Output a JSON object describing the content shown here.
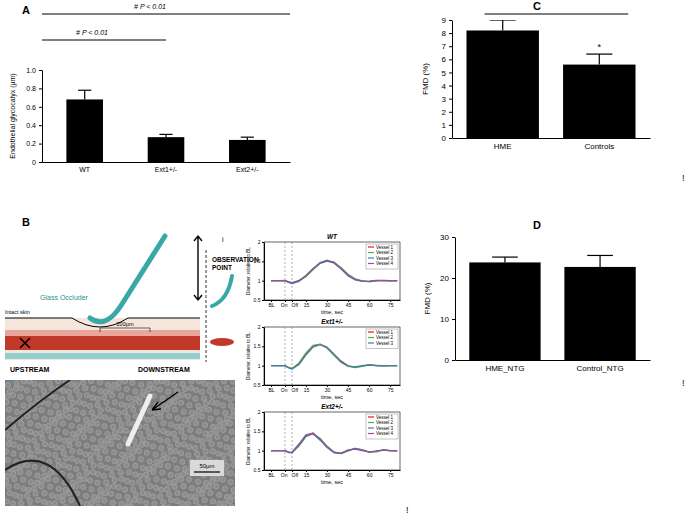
{
  "panel_labels": [
    "A",
    "B",
    "C",
    "D"
  ],
  "stray_marks": [
    "!",
    "!",
    "!"
  ],
  "diagram": {
    "glass_occluder": "Glass Occluder",
    "observation_point": "OBSERVATION POINT",
    "i": "i",
    "intact_skin": "Intact skin",
    "length": "200µm",
    "upstream": "UPSTREAM",
    "downstream": "DOWNSTREAM",
    "scale_bar": "50µm"
  },
  "chart_data": [
    {
      "type": "bar",
      "categories": [
        "WT",
        "Ext1+/-",
        "Ext2+/-"
      ],
      "values": [
        0.68,
        0.27,
        0.24
      ],
      "errors": [
        0.1,
        0.03,
        0.03
      ],
      "color": "#000000",
      "ylabel": "Endothelial glycocalyx (µm)",
      "ylim": [
        0,
        1
      ],
      "yticks": [
        0,
        0.2,
        0.4,
        0.6,
        0.8,
        {
          "value": 1,
          "label": "1.0"
        }
      ],
      "annotations": [
        "# P < 0.01",
        "# P < 0.01"
      ]
    },
    {
      "type": "bar",
      "categories": [
        "HME",
        "Controls"
      ],
      "values": [
        8.2,
        5.6
      ],
      "errors": [
        0.8,
        0.8
      ],
      "color": "#000000",
      "ylabel": "FMD (%)",
      "ylim": [
        0,
        9
      ],
      "yticks": [
        0,
        1,
        2,
        3,
        4,
        5,
        6,
        7,
        8,
        9
      ],
      "annotations": [
        "*"
      ]
    },
    {
      "type": "bar",
      "categories": [
        "HME_NTG",
        "Control_NTG"
      ],
      "values": [
        23.8,
        22.7
      ],
      "errors": [
        1.3,
        2.8
      ],
      "color": "#000000",
      "ylabel": "FMD (%)",
      "ylim": [
        0,
        30
      ],
      "yticks": [
        0,
        10,
        20,
        30
      ]
    },
    {
      "type": "line",
      "title": "WT",
      "xlabel": "time, sec",
      "ylabel": "Diameter, relative to BL",
      "x": [
        -10,
        -5,
        0,
        2.5,
        5,
        10,
        15,
        20,
        25,
        30,
        35,
        40,
        45,
        50,
        55,
        60,
        65,
        70,
        75,
        80
      ],
      "xlim": [
        -15,
        82
      ],
      "xticks": [
        {
          "value": -10,
          "label": "BL"
        },
        {
          "value": 0,
          "label": "On"
        },
        {
          "value": 5,
          "label": "Off"
        },
        15,
        30,
        45,
        60,
        75
      ],
      "ylim": [
        0.5,
        2
      ],
      "yticks": [
        0.5,
        1,
        1.5,
        2
      ],
      "legend": "top-right",
      "series": [
        {
          "name": "Vessel 1",
          "color": "#e41a1c",
          "values": [
            1,
            1,
            1,
            0.97,
            0.94,
            1.0,
            1.12,
            1.3,
            1.45,
            1.52,
            1.48,
            1.32,
            1.15,
            1.04,
            0.99,
            0.98,
            1.0,
            1.01,
            1.0,
            1.0
          ]
        },
        {
          "name": "Vessel 2",
          "color": "#4daf4a",
          "values": [
            1,
            1,
            1.01,
            0.96,
            0.93,
            0.99,
            1.1,
            1.28,
            1.44,
            1.5,
            1.47,
            1.34,
            1.17,
            1.05,
            1.0,
            0.97,
            0.99,
            1.0,
            1.0,
            1.0
          ]
        },
        {
          "name": "Vessel 3",
          "color": "#377eb8",
          "values": [
            1,
            1,
            0.99,
            0.95,
            0.92,
            0.98,
            1.14,
            1.32,
            1.47,
            1.53,
            1.45,
            1.3,
            1.12,
            1.02,
            0.98,
            0.99,
            1.01,
            1.0,
            0.99,
            1.0
          ]
        },
        {
          "name": "Vessel 4",
          "color": "#984ea3",
          "values": [
            1,
            1,
            1,
            0.97,
            0.95,
            1.01,
            1.13,
            1.31,
            1.46,
            1.51,
            1.46,
            1.31,
            1.14,
            1.03,
            0.99,
            0.98,
            1.0,
            1.0,
            1.0,
            1.0
          ]
        }
      ]
    },
    {
      "type": "line",
      "title": "Ext1+/-",
      "xlabel": "time, sec",
      "ylabel": "Diameter, relative to BL",
      "x": [
        -10,
        -5,
        0,
        2.5,
        5,
        10,
        15,
        20,
        25,
        30,
        35,
        40,
        45,
        50,
        55,
        60,
        65,
        70,
        75,
        80
      ],
      "xlim": [
        -15,
        82
      ],
      "xticks": [
        {
          "value": -10,
          "label": "BL"
        },
        {
          "value": 0,
          "label": "On"
        },
        {
          "value": 5,
          "label": "Off"
        },
        15,
        30,
        45,
        60,
        75
      ],
      "ylim": [
        0.5,
        2
      ],
      "yticks": [
        0.5,
        1,
        1.5,
        2
      ],
      "legend": "top-right",
      "series": [
        {
          "name": "Vessel 1",
          "color": "#e41a1c",
          "values": [
            1,
            1,
            1,
            0.95,
            0.93,
            1.05,
            1.3,
            1.5,
            1.56,
            1.48,
            1.3,
            1.12,
            1.0,
            0.96,
            0.99,
            1.02,
            1.0,
            0.99,
            1.0,
            1.0
          ]
        },
        {
          "name": "Vessel 2",
          "color": "#4daf4a",
          "values": [
            1,
            1,
            1,
            0.96,
            0.92,
            1.08,
            1.34,
            1.53,
            1.55,
            1.45,
            1.26,
            1.08,
            0.98,
            0.95,
            0.98,
            1.01,
            1.01,
            1.0,
            1.0,
            1.0
          ]
        },
        {
          "name": "Vessel 3",
          "color": "#377eb8",
          "values": [
            1,
            1,
            1,
            0.94,
            0.91,
            1.03,
            1.28,
            1.48,
            1.54,
            1.47,
            1.29,
            1.1,
            0.99,
            0.97,
            1.0,
            1.02,
            1.0,
            0.99,
            1.0,
            1.0
          ]
        }
      ]
    },
    {
      "type": "line",
      "title": "Ext2+/-",
      "xlabel": "time, sec",
      "ylabel": "Diameter, relative to BL",
      "x": [
        -10,
        -5,
        0,
        2.5,
        5,
        10,
        15,
        20,
        25,
        30,
        35,
        40,
        45,
        50,
        55,
        60,
        65,
        70,
        75,
        80
      ],
      "xlim": [
        -15,
        82
      ],
      "xticks": [
        {
          "value": -10,
          "label": "BL"
        },
        {
          "value": 0,
          "label": "On"
        },
        {
          "value": 5,
          "label": "Off"
        },
        15,
        30,
        45,
        60,
        75
      ],
      "ylim": [
        0.5,
        2
      ],
      "yticks": [
        0.5,
        1,
        1.5,
        2
      ],
      "legend": "top-right",
      "series": [
        {
          "name": "Vessel 1",
          "color": "#e41a1c",
          "values": [
            1,
            1,
            1,
            0.96,
            0.95,
            1.15,
            1.4,
            1.46,
            1.3,
            1.1,
            0.95,
            0.92,
            1.0,
            1.06,
            1.02,
            0.96,
            0.98,
            1.02,
            1.0,
            1.0
          ]
        },
        {
          "name": "Vessel 2",
          "color": "#4daf4a",
          "values": [
            1,
            1,
            1,
            0.95,
            0.94,
            1.12,
            1.36,
            1.44,
            1.32,
            1.12,
            0.97,
            0.93,
            0.99,
            1.05,
            1.03,
            0.97,
            0.97,
            1.01,
            1.0,
            1.0
          ]
        },
        {
          "name": "Vessel 3",
          "color": "#377eb8",
          "values": [
            1,
            1,
            1,
            0.97,
            0.96,
            1.18,
            1.42,
            1.43,
            1.27,
            1.08,
            0.94,
            0.93,
            1.01,
            1.06,
            1.01,
            0.96,
            0.99,
            1.02,
            1.0,
            0.99
          ]
        },
        {
          "name": "Vessel 4",
          "color": "#984ea3",
          "values": [
            1,
            1,
            1,
            0.96,
            0.95,
            1.14,
            1.38,
            1.45,
            1.29,
            1.09,
            0.96,
            0.94,
            1.02,
            1.04,
            1.0,
            0.97,
            0.99,
            1.01,
            1.0,
            1.0
          ]
        }
      ]
    }
  ]
}
